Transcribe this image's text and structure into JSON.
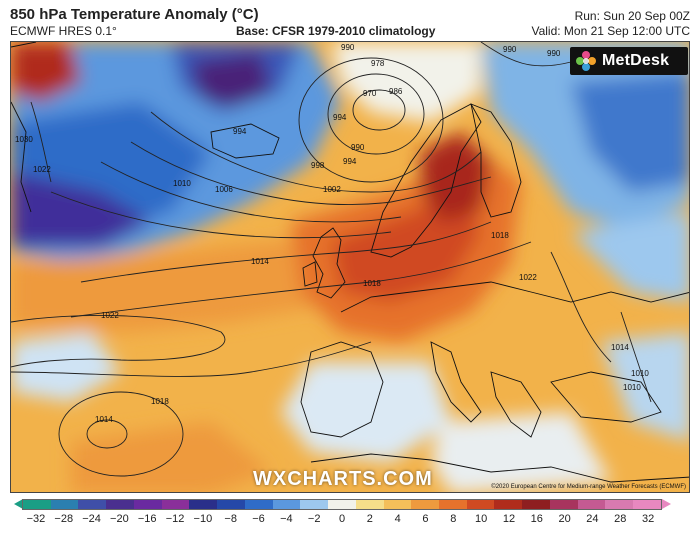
{
  "header": {
    "title": "850 hPa Temperature Anomaly (°C)",
    "model": "ECMWF HRES 0.1°",
    "base": "Base: CFSR 1979-2010 climatology",
    "run": "Run: Sun 20 Sep 00Z",
    "valid": "Valid: Mon 21 Sep 12:00 UTC"
  },
  "logo": {
    "text": "MetDesk"
  },
  "watermark": "WXCHARTS.COM",
  "credit": "©2020 European Centre for Medium-range Weather Forecasts (ECMWF)",
  "colors": {
    "cold_extreme": "#1a9e85",
    "warm_extreme": "#e888c0",
    "deep_cold": "#3a1f8a",
    "cold": "#2a56b8",
    "cool": "#8fc4ea",
    "neutral": "#f5f3ea",
    "warm": "#f2b24a",
    "hot": "#e8632a",
    "very_hot": "#b8241a"
  },
  "isobar_labels": [
    "990",
    "978",
    "970",
    "986",
    "994",
    "1030",
    "1022",
    "1010",
    "1006",
    "994",
    "990",
    "994",
    "998",
    "1002",
    "1014",
    "1018",
    "1018",
    "1022",
    "1022",
    "1018",
    "1014",
    "1014",
    "1010",
    "1010",
    "990",
    "990"
  ],
  "colorbar": {
    "ticks": [
      "−32",
      "−28",
      "−24",
      "−20",
      "−16",
      "−12",
      "−10",
      "−8",
      "−6",
      "−4",
      "−2",
      "0",
      "2",
      "4",
      "6",
      "8",
      "10",
      "12",
      "16",
      "20",
      "24",
      "28",
      "32"
    ],
    "segments": [
      "#1a9e85",
      "#2b7fb0",
      "#3f4fa8",
      "#4a2f8f",
      "#6a2aa0",
      "#8a2f9a",
      "#2a2f8a",
      "#2548a8",
      "#2f6cc8",
      "#5b98de",
      "#9dc8ee",
      "#f2f2ea",
      "#f6de8a",
      "#f4bf5a",
      "#ee9a3e",
      "#e6722c",
      "#d04a22",
      "#b02c1c",
      "#8e1e20",
      "#a8345e",
      "#c45a92",
      "#d87ab0",
      "#e888c0"
    ]
  }
}
